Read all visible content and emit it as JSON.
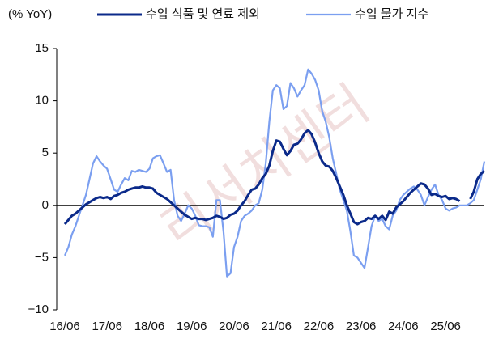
{
  "chart_data": {
    "type": "line",
    "y_label": "(% YoY)",
    "watermark": "리서치센터",
    "categories": [
      "16/06",
      null,
      null,
      null,
      null,
      null,
      null,
      null,
      null,
      null,
      null,
      null,
      "17/06",
      null,
      null,
      null,
      null,
      null,
      null,
      null,
      null,
      null,
      null,
      null,
      "18/06",
      null,
      null,
      null,
      null,
      null,
      null,
      null,
      null,
      null,
      null,
      null,
      "19/06",
      null,
      null,
      null,
      null,
      null,
      null,
      null,
      null,
      null,
      null,
      null,
      "20/06",
      null,
      null,
      null,
      null,
      null,
      null,
      null,
      null,
      null,
      null,
      null,
      "21/06",
      null,
      null,
      null,
      null,
      null,
      null,
      null,
      null,
      null,
      null,
      null,
      "22/06",
      null,
      null,
      null,
      null,
      null,
      null,
      null,
      null,
      null,
      null,
      null,
      "23/06",
      null,
      null,
      null,
      null,
      null,
      null,
      null,
      null,
      null,
      null,
      null,
      "24/06",
      null,
      null,
      null,
      null,
      null,
      null,
      null,
      null,
      null,
      null,
      null,
      "25/06",
      null,
      null,
      null,
      null,
      null,
      null,
      null,
      null,
      null,
      null,
      null
    ],
    "series": [
      {
        "name": "수입 식품 및 연료 제외",
        "color": "#0b2a8a",
        "values": [
          -1.8,
          -1.4,
          -1.0,
          -0.8,
          -0.5,
          -0.2,
          0.1,
          0.3,
          0.5,
          0.7,
          0.8,
          0.7,
          0.8,
          0.6,
          0.9,
          1.0,
          1.2,
          1.3,
          1.5,
          1.6,
          1.7,
          1.7,
          1.8,
          1.7,
          1.7,
          1.6,
          1.2,
          1.0,
          0.8,
          0.6,
          0.3,
          0.0,
          -0.3,
          -0.6,
          -0.9,
          -1.1,
          -1.3,
          -1.2,
          -1.3,
          -1.3,
          -1.4,
          -1.3,
          -1.2,
          -1.0,
          -1.1,
          -1.3,
          -1.2,
          -0.9,
          -0.8,
          -0.5,
          0.0,
          0.4,
          1.0,
          1.5,
          1.6,
          2.0,
          2.6,
          3.0,
          3.8,
          5.2,
          6.2,
          6.1,
          5.4,
          4.8,
          5.2,
          5.8,
          5.9,
          6.3,
          6.9,
          7.2,
          6.8,
          6.0,
          5.0,
          4.2,
          3.8,
          3.7,
          3.3,
          2.6,
          1.8,
          1.0,
          0.0,
          -0.8,
          -1.6,
          -1.8,
          -1.6,
          -1.5,
          -1.2,
          -1.3,
          -1.0,
          -1.3,
          -1.0,
          -1.4,
          -0.6,
          -0.8,
          -0.2,
          0.1,
          0.4,
          0.8,
          1.2,
          1.5,
          1.8,
          2.1,
          2.0,
          1.6,
          1.0,
          1.1,
          0.9,
          0.8,
          0.9,
          0.6,
          0.7,
          0.6,
          0.4,
          null,
          null,
          0.6,
          1.3,
          2.5,
          3.0,
          3.3
        ]
      },
      {
        "name": "수입 물가 지수",
        "color": "#7b9ff0",
        "values": [
          -4.8,
          -4.0,
          -2.8,
          -2.0,
          -1.0,
          0.0,
          1.0,
          2.5,
          4.0,
          4.7,
          4.2,
          3.8,
          3.5,
          2.5,
          1.5,
          1.3,
          2.0,
          2.6,
          2.4,
          3.3,
          3.2,
          3.4,
          3.3,
          3.2,
          3.5,
          4.5,
          4.7,
          4.8,
          4.0,
          3.2,
          3.4,
          0.5,
          -1.0,
          -1.5,
          -0.8,
          0.0,
          -0.3,
          -1.0,
          -1.9,
          -2.0,
          -2.0,
          -2.1,
          -3.0,
          0.5,
          0.5,
          -2.5,
          -6.8,
          -6.5,
          -4.0,
          -3.0,
          -1.5,
          -1.0,
          -0.8,
          -0.5,
          0.0,
          0.2,
          1.5,
          4.0,
          8.0,
          11.0,
          11.5,
          11.2,
          9.2,
          9.5,
          11.7,
          11.2,
          10.4,
          11.0,
          11.5,
          13.0,
          12.6,
          12.0,
          11.0,
          9.0,
          8.0,
          6.5,
          4.5,
          3.0,
          1.5,
          0.5,
          -0.5,
          -2.5,
          -4.8,
          -5.0,
          -5.5,
          -6.0,
          -4.0,
          -2.0,
          -1.0,
          -1.5,
          -1.3,
          -2.0,
          -2.3,
          -1.0,
          -0.5,
          0.5,
          1.0,
          1.3,
          1.6,
          1.8,
          1.5,
          1.0,
          0.0,
          0.8,
          1.5,
          2.0,
          1.0,
          0.5,
          -0.3,
          -0.5,
          -0.3,
          -0.2,
          0.0,
          0.0,
          0.0,
          0.2,
          0.5,
          1.5,
          2.5,
          4.2
        ]
      }
    ],
    "ylim": [
      -10,
      15
    ],
    "yticks": [
      {
        "value": -10,
        "label": "−10"
      },
      {
        "value": -5,
        "label": "−5"
      },
      0,
      5,
      10,
      15
    ],
    "grid": false,
    "legend": "top"
  }
}
